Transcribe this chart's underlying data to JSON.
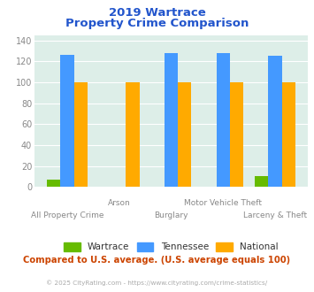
{
  "title_line1": "2019 Wartrace",
  "title_line2": "Property Crime Comparison",
  "categories": [
    "All Property Crime",
    "Arson",
    "Burglary",
    "Motor Vehicle Theft",
    "Larceny & Theft"
  ],
  "wartrace": [
    7,
    0,
    0,
    0,
    10
  ],
  "tennessee": [
    126,
    0,
    128,
    128,
    125
  ],
  "national": [
    100,
    100,
    100,
    100,
    100
  ],
  "colors": {
    "wartrace": "#66bb00",
    "tennessee": "#4499ff",
    "national": "#ffaa00"
  },
  "ylim": [
    0,
    145
  ],
  "yticks": [
    0,
    20,
    40,
    60,
    80,
    100,
    120,
    140
  ],
  "background_color": "#ddeee8",
  "subtitle": "Compared to U.S. average. (U.S. average equals 100)",
  "footer": "© 2025 CityRating.com - https://www.cityrating.com/crime-statistics/",
  "title_color": "#2255cc",
  "subtitle_color": "#cc4400",
  "footer_color": "#aaaaaa",
  "legend_labels": [
    "Wartrace",
    "Tennessee",
    "National"
  ]
}
